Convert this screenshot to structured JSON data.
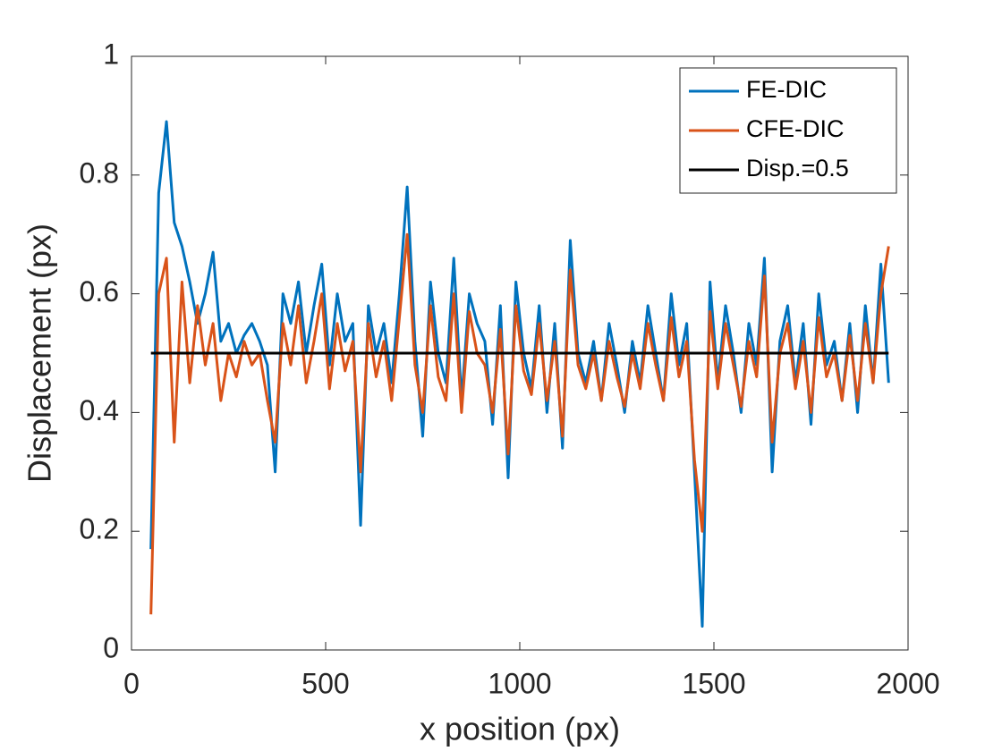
{
  "chart_data": {
    "type": "line",
    "xlabel": "x position (px)",
    "ylabel": "Displacement (px)",
    "x": [
      50,
      70,
      90,
      110,
      130,
      150,
      170,
      190,
      210,
      230,
      250,
      270,
      290,
      310,
      330,
      350,
      370,
      390,
      410,
      430,
      450,
      470,
      490,
      510,
      530,
      550,
      570,
      590,
      610,
      630,
      650,
      670,
      690,
      710,
      730,
      750,
      770,
      790,
      810,
      830,
      850,
      870,
      890,
      910,
      930,
      950,
      970,
      990,
      1010,
      1030,
      1050,
      1070,
      1090,
      1110,
      1130,
      1150,
      1170,
      1190,
      1210,
      1230,
      1250,
      1270,
      1290,
      1310,
      1330,
      1350,
      1370,
      1390,
      1410,
      1430,
      1450,
      1470,
      1490,
      1510,
      1530,
      1550,
      1570,
      1590,
      1610,
      1630,
      1650,
      1670,
      1690,
      1710,
      1730,
      1750,
      1770,
      1790,
      1810,
      1830,
      1850,
      1870,
      1890,
      1910,
      1930,
      1950
    ],
    "series": [
      {
        "name": "FE-DIC",
        "color": "#0072BD",
        "values": [
          0.17,
          0.77,
          0.89,
          0.72,
          0.68,
          0.62,
          0.55,
          0.6,
          0.67,
          0.52,
          0.55,
          0.5,
          0.53,
          0.55,
          0.52,
          0.48,
          0.3,
          0.6,
          0.55,
          0.62,
          0.5,
          0.58,
          0.65,
          0.48,
          0.6,
          0.52,
          0.55,
          0.21,
          0.58,
          0.5,
          0.55,
          0.45,
          0.6,
          0.78,
          0.52,
          0.36,
          0.62,
          0.5,
          0.45,
          0.66,
          0.42,
          0.6,
          0.55,
          0.52,
          0.38,
          0.58,
          0.29,
          0.62,
          0.5,
          0.44,
          0.58,
          0.4,
          0.55,
          0.34,
          0.69,
          0.5,
          0.45,
          0.52,
          0.42,
          0.55,
          0.48,
          0.4,
          0.52,
          0.45,
          0.58,
          0.5,
          0.42,
          0.6,
          0.48,
          0.55,
          0.3,
          0.04,
          0.62,
          0.45,
          0.58,
          0.5,
          0.4,
          0.55,
          0.48,
          0.66,
          0.3,
          0.52,
          0.58,
          0.45,
          0.55,
          0.38,
          0.6,
          0.48,
          0.52,
          0.42,
          0.55,
          0.4,
          0.58,
          0.45,
          0.65,
          0.45
        ]
      },
      {
        "name": "CFE-DIC",
        "color": "#D95319",
        "values": [
          0.06,
          0.6,
          0.66,
          0.35,
          0.62,
          0.45,
          0.58,
          0.48,
          0.55,
          0.42,
          0.5,
          0.46,
          0.52,
          0.48,
          0.5,
          0.42,
          0.35,
          0.55,
          0.48,
          0.58,
          0.45,
          0.52,
          0.6,
          0.44,
          0.55,
          0.47,
          0.52,
          0.3,
          0.55,
          0.46,
          0.52,
          0.42,
          0.56,
          0.7,
          0.48,
          0.4,
          0.58,
          0.46,
          0.42,
          0.6,
          0.4,
          0.57,
          0.5,
          0.48,
          0.4,
          0.54,
          0.33,
          0.58,
          0.47,
          0.43,
          0.55,
          0.42,
          0.52,
          0.36,
          0.64,
          0.48,
          0.44,
          0.5,
          0.42,
          0.52,
          0.46,
          0.41,
          0.5,
          0.44,
          0.55,
          0.48,
          0.42,
          0.56,
          0.46,
          0.52,
          0.32,
          0.2,
          0.57,
          0.44,
          0.55,
          0.48,
          0.41,
          0.52,
          0.46,
          0.63,
          0.35,
          0.5,
          0.55,
          0.44,
          0.52,
          0.4,
          0.56,
          0.46,
          0.5,
          0.42,
          0.53,
          0.42,
          0.55,
          0.45,
          0.6,
          0.68
        ]
      },
      {
        "name": "Disp.=0.5",
        "color": "#000000",
        "x": [
          50,
          1950
        ],
        "values": [
          0.5,
          0.5
        ]
      }
    ],
    "xlim": [
      0,
      2000
    ],
    "xticks": [
      0,
      500,
      1000,
      1500,
      2000
    ],
    "ylim": [
      0,
      1
    ],
    "yticks": [
      0,
      0.2,
      0.4,
      0.6,
      0.8,
      1
    ],
    "legend": "upper right"
  }
}
